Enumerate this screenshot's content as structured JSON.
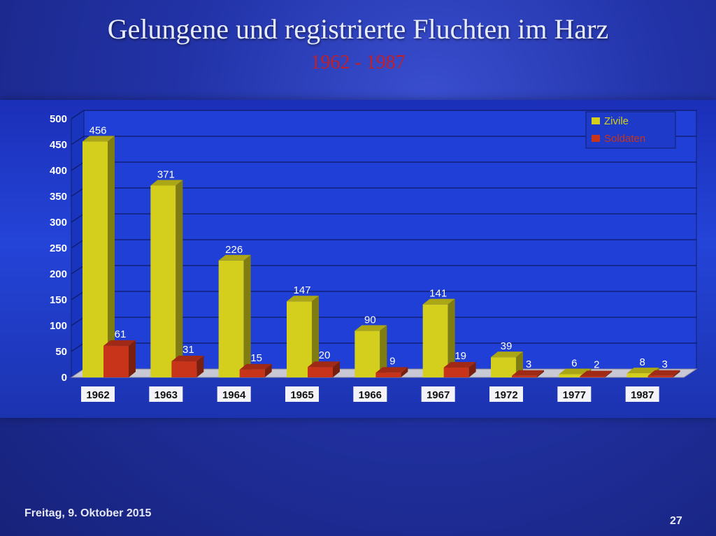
{
  "slide": {
    "title": "Gelungene und registrierte Fluchten im Harz",
    "subtitle": "1962 - 1987",
    "footer_date": "Freitag, 9. Oktober 2015",
    "page_number": "27"
  },
  "chart_data": {
    "type": "bar",
    "title": "",
    "xlabel": "",
    "ylabel": "",
    "categories": [
      "1962",
      "1963",
      "1964",
      "1965",
      "1966",
      "1967",
      "1972",
      "1977",
      "1987"
    ],
    "series": [
      {
        "name": "Zivile",
        "values": [
          456,
          371,
          226,
          147,
          90,
          141,
          39,
          6,
          8
        ],
        "color": "#d4cf1c"
      },
      {
        "name": "Soldaten",
        "values": [
          61,
          31,
          15,
          20,
          9,
          19,
          3,
          2,
          3
        ],
        "color": "#c8341a"
      }
    ],
    "ylim": [
      0,
      500
    ],
    "yticks": [
      0,
      50,
      100,
      150,
      200,
      250,
      300,
      350,
      400,
      450,
      500
    ],
    "grid": true,
    "legend_position": "top-right",
    "data_labels": true
  }
}
